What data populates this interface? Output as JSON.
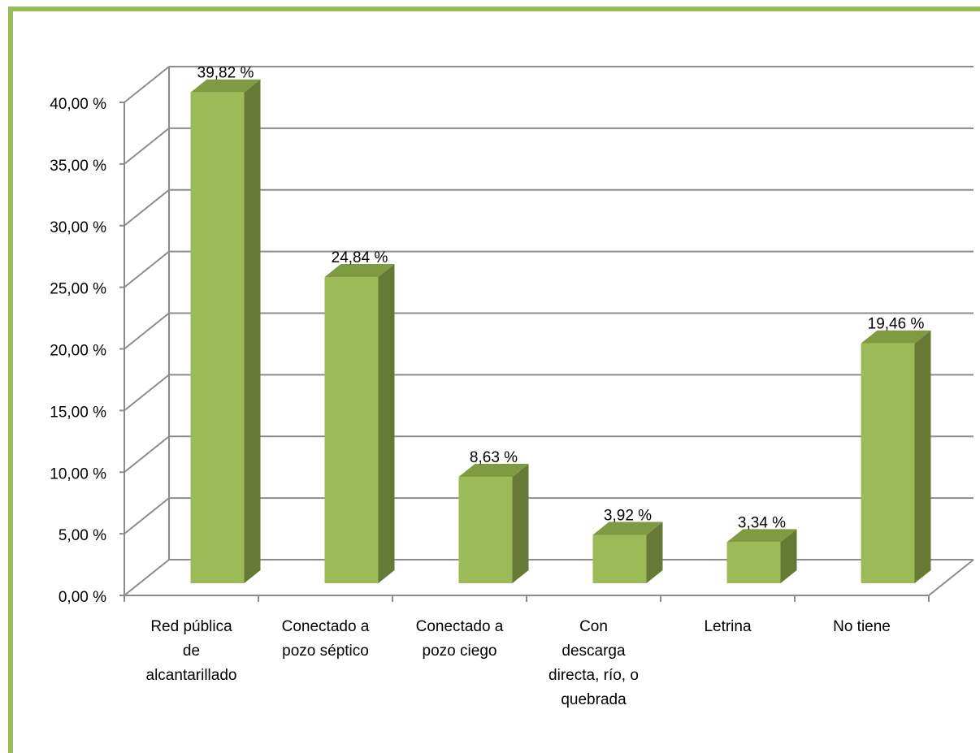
{
  "chart_data": {
    "type": "bar",
    "title": "",
    "xlabel": "",
    "ylabel": "",
    "ylim": [
      0,
      40
    ],
    "y_ticks": [
      "0,00 %",
      "5,00 %",
      "10,00 %",
      "15,00 %",
      "20,00 %",
      "25,00 %",
      "30,00 %",
      "35,00 %",
      "40,00 %"
    ],
    "categories": [
      [
        "Red pública",
        "de",
        "alcantarillado"
      ],
      [
        "Conectado a",
        "pozo séptico"
      ],
      [
        "Conectado a",
        "pozo ciego"
      ],
      [
        "Con",
        "descarga",
        "directa, río, o",
        "quebrada"
      ],
      [
        "Letrina"
      ],
      [
        "No tiene"
      ]
    ],
    "values": [
      39.82,
      24.84,
      8.63,
      3.92,
      3.34,
      19.46
    ],
    "data_labels": [
      "39,82 %",
      "24,84 %",
      "8,63 %",
      "3,92 %",
      "3,34 %",
      "19,46 %"
    ],
    "grid": true,
    "legend": "none",
    "style": "3d-column"
  },
  "colors": {
    "frame": "#9bbb59",
    "bar_front": "#9bbb59",
    "bar_side": "#677a35",
    "bar_top": "#7e9b43",
    "gridline": "#8c8c8c",
    "text": "#000000"
  }
}
